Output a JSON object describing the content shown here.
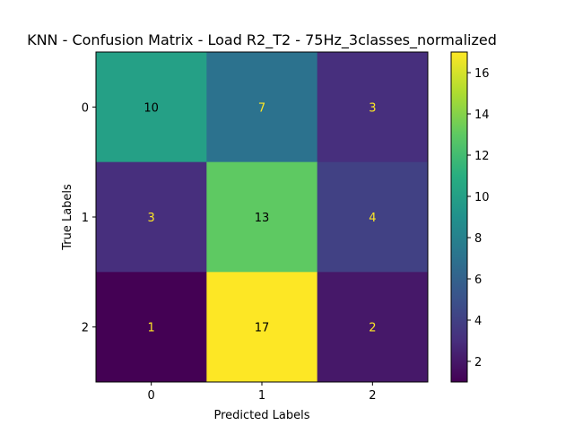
{
  "chart_data": {
    "type": "heatmap",
    "title": "KNN - Confusion Matrix - Load R2_T2 - 75Hz_3classes_normalized",
    "xlabel": "Predicted Labels",
    "ylabel": "True Labels",
    "x_categories": [
      "0",
      "1",
      "2"
    ],
    "y_categories": [
      "0",
      "1",
      "2"
    ],
    "values": [
      [
        10,
        7,
        3
      ],
      [
        3,
        13,
        4
      ],
      [
        1,
        17,
        2
      ]
    ],
    "colormap": "viridis",
    "vmin": 1,
    "vmax": 17,
    "colorbar_ticks": [
      2,
      4,
      6,
      8,
      10,
      12,
      14,
      16
    ],
    "text_color_light": "#fde725",
    "text_color_dark": "#000000"
  }
}
